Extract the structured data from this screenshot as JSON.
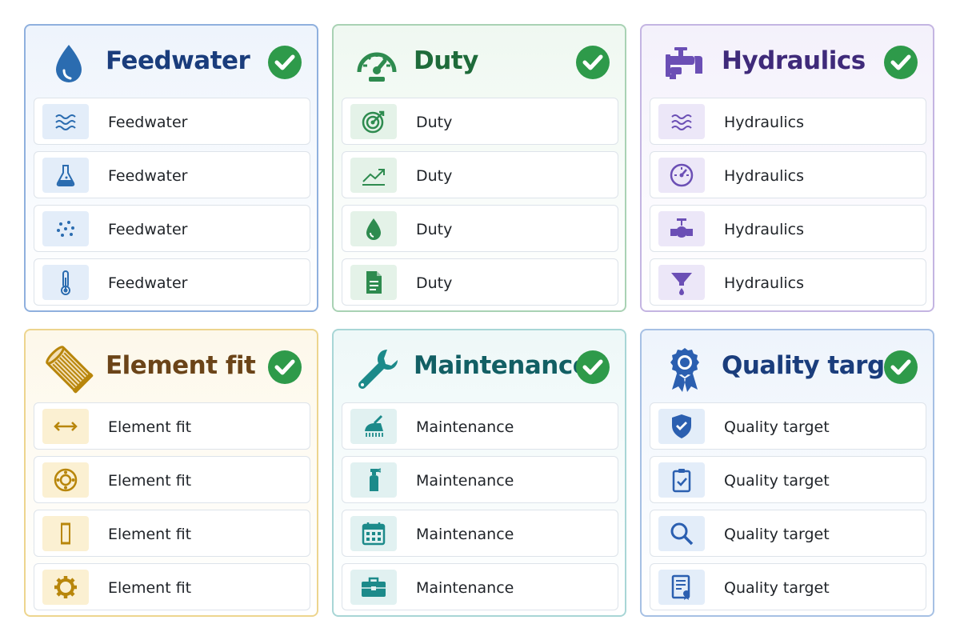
{
  "cards": [
    {
      "title": "Feedwater",
      "header_icon": "water-drop-icon",
      "status_icon": "check-circle-icon",
      "colors": {
        "title": "#1a3d7c",
        "accent": "#2b6cb0",
        "border": "#8fb0de",
        "background": "#eef4fc",
        "tile": "#e3edf9"
      },
      "items": [
        {
          "label": "Feedwater",
          "icon": "waves-icon"
        },
        {
          "label": "Feedwater",
          "icon": "flask-icon"
        },
        {
          "label": "Feedwater",
          "icon": "particles-icon"
        },
        {
          "label": "Feedwater",
          "icon": "thermometer-icon"
        }
      ]
    },
    {
      "title": "Duty",
      "header_icon": "gauge-icon",
      "status_icon": "check-circle-icon",
      "colors": {
        "title": "#1e6b3a",
        "accent": "#2e8b4f",
        "border": "#a9d2b4",
        "background": "#eff8f1",
        "tile": "#e4f2e8"
      },
      "items": [
        {
          "label": "Duty",
          "icon": "target-icon"
        },
        {
          "label": "Duty",
          "icon": "trend-line-icon"
        },
        {
          "label": "Duty",
          "icon": "drop-icon"
        },
        {
          "label": "Duty",
          "icon": "document-icon"
        }
      ]
    },
    {
      "title": "Hydraulics",
      "header_icon": "faucet-pipe-icon",
      "status_icon": "check-circle-icon",
      "colors": {
        "title": "#3f2a7a",
        "accent": "#6b4fb5",
        "border": "#c4b5e2",
        "background": "#f4f1fb",
        "tile": "#ece7f8"
      },
      "items": [
        {
          "label": "Hydraulics",
          "icon": "waves-icon"
        },
        {
          "label": "Hydraulics",
          "icon": "pressure-gauge-icon"
        },
        {
          "label": "Hydraulics",
          "icon": "valve-icon"
        },
        {
          "label": "Hydraulics",
          "icon": "funnel-icon"
        }
      ]
    },
    {
      "title": "Element fit",
      "header_icon": "filter-cartridge-icon",
      "status_icon": "check-circle-icon",
      "colors": {
        "title": "#6b4418",
        "accent": "#b8860b",
        "border": "#edd58e",
        "background": "#fdf8ea",
        "tile": "#fbf0d2"
      },
      "items": [
        {
          "label": "Element fit",
          "icon": "double-arrow-icon"
        },
        {
          "label": "Element fit",
          "icon": "flange-ring-icon"
        },
        {
          "label": "Element fit",
          "icon": "cartridge-icon"
        },
        {
          "label": "Element fit",
          "icon": "gear-icon"
        }
      ]
    },
    {
      "title": "Maintenance",
      "header_icon": "wrench-icon",
      "status_icon": "check-circle-icon",
      "colors": {
        "title": "#125f64",
        "accent": "#1c8a8a",
        "border": "#a8d6d6",
        "background": "#eef8f8",
        "tile": "#e1f1f1"
      },
      "items": [
        {
          "label": "Maintenance",
          "icon": "brush-icon"
        },
        {
          "label": "Maintenance",
          "icon": "spray-bottle-icon"
        },
        {
          "label": "Maintenance",
          "icon": "calendar-icon"
        },
        {
          "label": "Maintenance",
          "icon": "toolbox-icon"
        }
      ]
    },
    {
      "title": "Quality target",
      "header_icon": "award-ribbon-icon",
      "status_icon": "check-circle-icon",
      "colors": {
        "title": "#1a3d7c",
        "accent": "#2b5fb0",
        "border": "#a6c0e4",
        "background": "#eef4fc",
        "tile": "#e3edf9"
      },
      "items": [
        {
          "label": "Quality target",
          "icon": "shield-check-icon"
        },
        {
          "label": "Quality target",
          "icon": "clipboard-check-icon"
        },
        {
          "label": "Quality target",
          "icon": "magnifier-icon"
        },
        {
          "label": "Quality target",
          "icon": "certificate-icon"
        }
      ]
    }
  ]
}
